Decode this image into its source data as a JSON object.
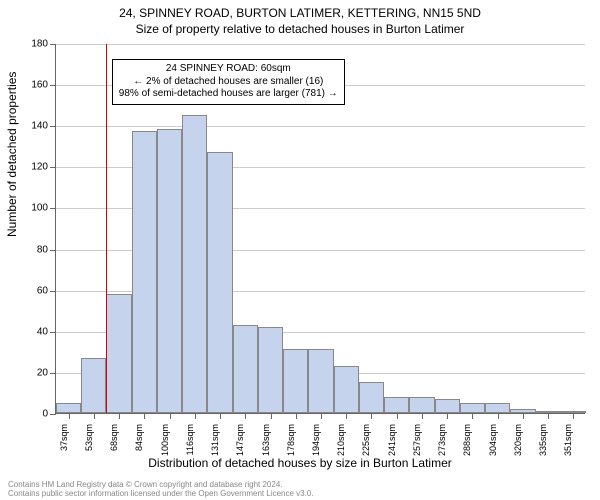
{
  "title_main": "24, SPINNEY ROAD, BURTON LATIMER, KETTERING, NN15 5ND",
  "title_sub": "Size of property relative to detached houses in Burton Latimer",
  "y_axis_title": "Number of detached properties",
  "x_axis_title": "Distribution of detached houses by size in Burton Latimer",
  "annotation": {
    "line1": "24 SPINNEY ROAD: 60sqm",
    "line2": "← 2% of detached houses are smaller (16)",
    "line3": "98% of semi-detached houses are larger (781) →"
  },
  "footer1": "Contains HM Land Registry data © Crown copyright and database right 2024.",
  "footer2": "Contains public sector information licensed under the Open Government Licence v3.0.",
  "chart": {
    "type": "histogram",
    "ylim": [
      0,
      180
    ],
    "ytick_step": 20,
    "yticks": [
      0,
      20,
      40,
      60,
      80,
      100,
      120,
      140,
      160,
      180
    ],
    "x_categories": [
      "37sqm",
      "53sqm",
      "68sqm",
      "84sqm",
      "100sqm",
      "116sqm",
      "131sqm",
      "147sqm",
      "163sqm",
      "178sqm",
      "194sqm",
      "210sqm",
      "225sqm",
      "241sqm",
      "257sqm",
      "273sqm",
      "288sqm",
      "304sqm",
      "320sqm",
      "335sqm",
      "351sqm"
    ],
    "values": [
      5,
      27,
      58,
      137,
      138,
      145,
      127,
      43,
      42,
      31,
      31,
      23,
      15,
      8,
      8,
      7,
      5,
      5,
      2,
      0,
      0
    ],
    "ref_line_x": 60,
    "x_min": 29,
    "x_max": 359,
    "bar_fill": "#c5d4ec",
    "bar_border": "#888888",
    "grid_color": "#cccccc",
    "ref_color": "#d40000",
    "background_color": "#ffffff",
    "title_fontsize": 12,
    "axis_label_fontsize": 12,
    "tick_fontsize": 10,
    "annotation_fontsize": 10,
    "footer_color": "#888888"
  }
}
